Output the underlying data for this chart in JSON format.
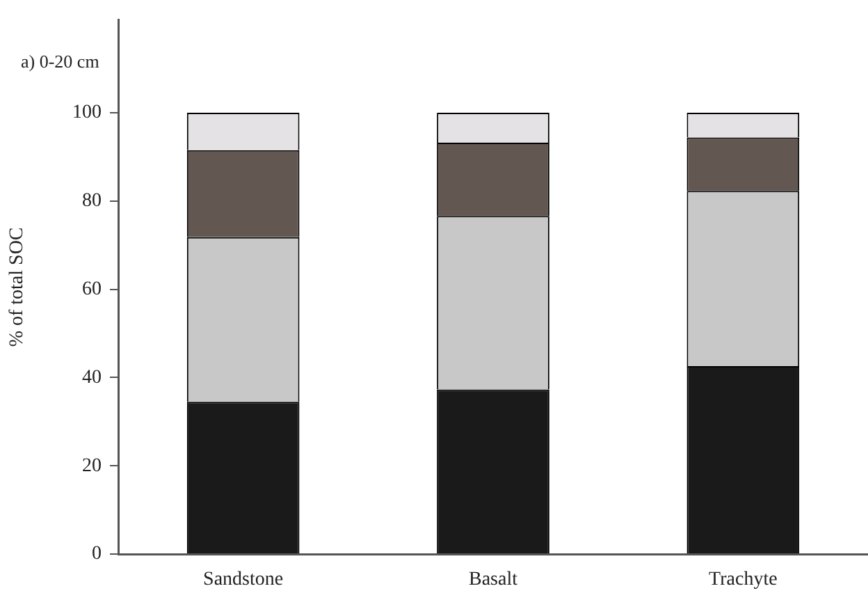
{
  "chart_data": {
    "type": "bar",
    "title": "a) 0-20 cm",
    "ylabel": "% of total SOC",
    "categories": [
      "Sandstone",
      "Basalt",
      "Trachyte"
    ],
    "stacked": true,
    "series": [
      {
        "color": "#1a1a1a",
        "values": [
          34.5,
          37.3,
          42.6
        ]
      },
      {
        "color": "#c8c8c8",
        "values": [
          37.3,
          39.3,
          39.7
        ]
      },
      {
        "color": "#625851",
        "values": [
          19.7,
          16.6,
          12.1
        ]
      },
      {
        "color": "#e4e2e4",
        "values": [
          8.5,
          6.8,
          5.6
        ]
      }
    ],
    "ylim": [
      0,
      121
    ],
    "yticks": [
      0,
      20,
      40,
      60,
      80,
      100
    ],
    "grid": false,
    "legend": false
  }
}
